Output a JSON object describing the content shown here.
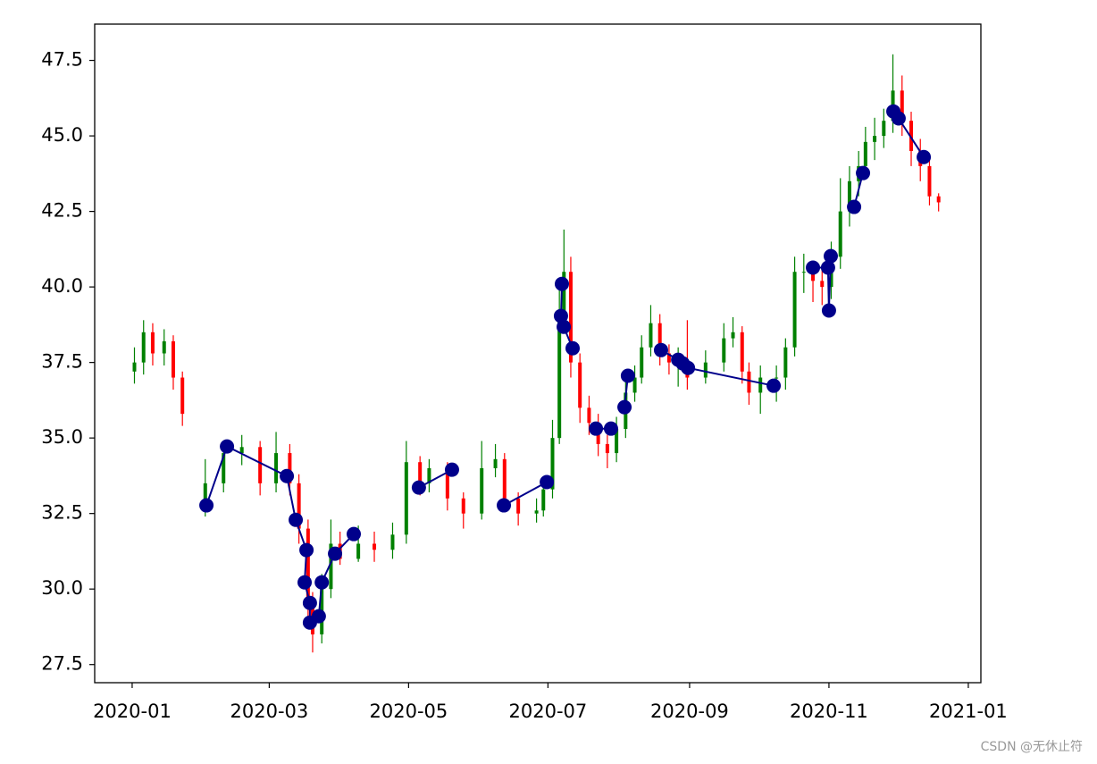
{
  "chart_data": {
    "type": "candlestick",
    "xlim": [
      -16.4,
      371.5
    ],
    "xticks": [
      {
        "value": 0,
        "label": "2020-01"
      },
      {
        "value": 60,
        "label": "2020-03"
      },
      {
        "value": 121,
        "label": "2020-05"
      },
      {
        "value": 182,
        "label": "2020-07"
      },
      {
        "value": 244,
        "label": "2020-09"
      },
      {
        "value": 305,
        "label": "2020-11"
      },
      {
        "value": 366,
        "label": "2021-01"
      }
    ],
    "ylim": [
      26.9,
      48.7
    ],
    "yticks": [
      27.5,
      {
        "value": 30,
        "label": "30.0"
      },
      32.5,
      {
        "value": 35,
        "label": "35.0"
      },
      37.5,
      {
        "value": 40,
        "label": "40.0"
      },
      42.5,
      {
        "value": 45,
        "label": "45.0"
      },
      47.5
    ],
    "up_color": "#008000",
    "down_color": "#ff0000",
    "candles": {
      "x": [
        1,
        5,
        9,
        14,
        18,
        22,
        32,
        40,
        48,
        56,
        63,
        69,
        73,
        77,
        79,
        83,
        87,
        91,
        99,
        106,
        114,
        120,
        126,
        130,
        138,
        145,
        153,
        159,
        163,
        169,
        177,
        180,
        184,
        187,
        189,
        192,
        196,
        200,
        204,
        208,
        212,
        216,
        220,
        223,
        227,
        231,
        235,
        239,
        243,
        251,
        259,
        263,
        267,
        270,
        275,
        282,
        286,
        290,
        294,
        298,
        302,
        306,
        310,
        314,
        318,
        321,
        325,
        329,
        333,
        337,
        341,
        345,
        349,
        353
      ],
      "open": [
        37.2,
        37.5,
        38.5,
        37.8,
        38.2,
        37.0,
        32.8,
        33.5,
        34.5,
        34.7,
        33.5,
        34.5,
        33.5,
        32.0,
        29.5,
        28.5,
        30.0,
        31.5,
        31.0,
        31.5,
        31.3,
        31.8,
        34.2,
        33.5,
        34.0,
        33.0,
        32.5,
        34.0,
        34.3,
        33.0,
        32.5,
        32.6,
        33.3,
        35.0,
        39.0,
        40.5,
        37.5,
        36.0,
        35.5,
        34.8,
        34.5,
        35.3,
        36.5,
        37.0,
        38.0,
        38.8,
        37.8,
        37.5,
        37.5,
        37.0,
        37.5,
        38.3,
        38.5,
        37.2,
        36.5,
        37.0,
        37.0,
        38.0,
        40.5,
        40.5,
        40.2,
        40.0,
        41.0,
        42.5,
        43.5,
        44.0,
        44.8,
        45.0,
        45.5,
        46.5,
        45.5,
        44.5,
        44.0,
        43.0
      ],
      "close": [
        37.5,
        38.5,
        37.8,
        38.2,
        37.0,
        35.8,
        33.5,
        34.5,
        34.7,
        33.5,
        34.5,
        33.5,
        32.0,
        29.5,
        28.5,
        30.0,
        31.5,
        31.0,
        31.5,
        31.3,
        31.8,
        34.2,
        33.5,
        34.0,
        33.0,
        32.5,
        34.0,
        34.3,
        33.0,
        32.5,
        32.6,
        33.3,
        35.0,
        39.0,
        40.5,
        37.5,
        36.0,
        35.5,
        34.8,
        34.5,
        35.3,
        36.5,
        37.0,
        38.0,
        38.8,
        37.8,
        37.5,
        37.5,
        37.0,
        37.5,
        38.3,
        38.5,
        37.2,
        36.5,
        37.0,
        37.0,
        38.0,
        40.5,
        40.5,
        40.2,
        40.0,
        41.0,
        42.5,
        43.5,
        44.0,
        44.8,
        45.0,
        45.5,
        46.5,
        45.5,
        44.5,
        44.0,
        43.0,
        42.8
      ],
      "low": [
        36.8,
        37.1,
        37.4,
        37.4,
        36.6,
        35.4,
        32.4,
        33.2,
        34.1,
        33.1,
        33.2,
        33.1,
        31.5,
        29.0,
        27.9,
        28.2,
        29.7,
        30.8,
        30.9,
        30.9,
        31.0,
        31.5,
        33.1,
        33.2,
        32.6,
        32.0,
        32.3,
        33.7,
        32.6,
        32.1,
        32.2,
        32.4,
        33.0,
        34.8,
        38.5,
        37.0,
        35.5,
        35.1,
        34.4,
        34.0,
        34.2,
        35.0,
        36.2,
        36.8,
        37.7,
        37.4,
        37.1,
        36.7,
        36.6,
        36.8,
        37.2,
        38.0,
        36.8,
        36.1,
        35.8,
        36.2,
        36.6,
        37.7,
        39.8,
        39.5,
        39.4,
        39.6,
        40.6,
        42.0,
        43.0,
        43.6,
        44.2,
        44.6,
        45.1,
        45.0,
        44.0,
        43.5,
        42.7,
        42.5
      ],
      "high": [
        38.0,
        38.9,
        38.8,
        38.6,
        38.4,
        37.2,
        34.3,
        34.9,
        35.1,
        34.9,
        35.2,
        34.8,
        33.8,
        32.3,
        29.9,
        30.5,
        32.3,
        31.9,
        32.1,
        31.9,
        32.2,
        34.9,
        34.4,
        34.3,
        34.2,
        33.2,
        34.9,
        34.8,
        34.5,
        33.2,
        33.0,
        33.6,
        35.6,
        40.0,
        41.9,
        41.0,
        37.8,
        36.4,
        35.8,
        35.1,
        35.7,
        36.9,
        37.4,
        38.4,
        39.4,
        39.1,
        38.1,
        38.0,
        38.9,
        37.9,
        38.8,
        39.0,
        38.7,
        37.5,
        37.4,
        37.4,
        38.3,
        41.0,
        41.1,
        40.8,
        40.6,
        41.5,
        43.6,
        44.0,
        44.5,
        45.3,
        45.6,
        45.9,
        47.7,
        47.0,
        45.8,
        44.9,
        44.3,
        43.1
      ]
    },
    "series": [
      {
        "color": "#00008b",
        "x": [
          32.5,
          41.5,
          67.7,
          71.6,
          76.3,
          75.5,
          77.8,
          77.8,
          81.7,
          83,
          88.8,
          97,
          null,
          125.5,
          140,
          null,
          162.7,
          181.5,
          null,
          188.1,
          187.7,
          188.9,
          192.8,
          null,
          203,
          209.6,
          null,
          215.5,
          217,
          null,
          231.5,
          239,
          241,
          243.3,
          280.8,
          null,
          298,
          304.6,
          305,
          305.8,
          null,
          316,
          319.9,
          null,
          333.2,
          335.5,
          346.5
        ],
        "values": [
          32.77,
          34.72,
          33.74,
          32.29,
          31.29,
          30.22,
          29.54,
          28.89,
          29.1,
          30.22,
          31.17,
          31.82,
          null,
          33.36,
          33.95,
          null,
          32.77,
          33.54,
          null,
          40.1,
          39.04,
          38.68,
          37.97,
          null,
          35.31,
          35.31,
          null,
          36.02,
          37.06,
          null,
          37.91,
          37.59,
          37.47,
          37.32,
          36.73,
          null,
          40.64,
          40.64,
          39.22,
          41.02,
          null,
          42.65,
          43.77,
          null,
          45.81,
          45.58,
          44.3
        ]
      }
    ]
  },
  "watermark": "CSDN @无休止符"
}
